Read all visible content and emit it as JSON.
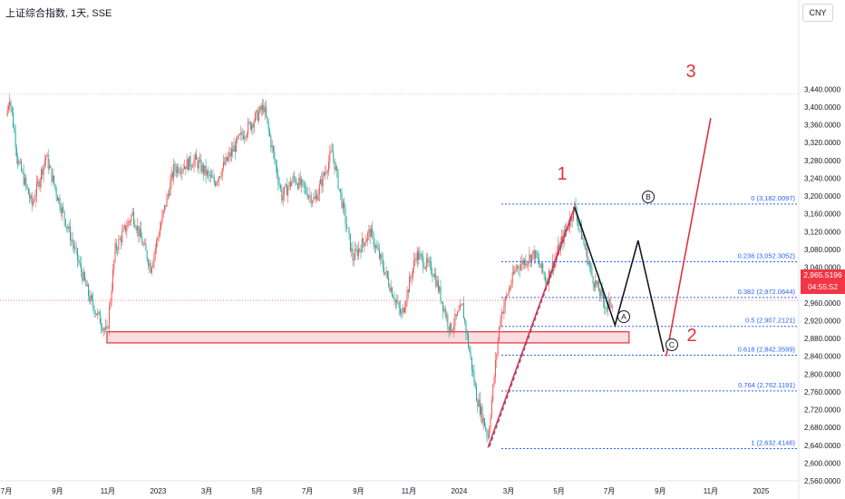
{
  "header": {
    "symbol": "上证综合指数",
    "interval": "1天",
    "exchange": "SSE",
    "currency_button": "CNY"
  },
  "last_price": {
    "value": "2,965.5196",
    "countdown": "04:55:52"
  },
  "colors": {
    "up": "#ef5350",
    "down": "#26a69a",
    "fib": "#2962ff",
    "wave": "#e0323c",
    "zone": "#f7c7cc"
  },
  "chart_data": {
    "type": "candlestick",
    "y_range": [
      2560,
      3460
    ],
    "y_ticks": [
      "3,440.0000",
      "3,400.0000",
      "3,360.0000",
      "3,320.0000",
      "3,280.0000",
      "3,240.0000",
      "3,200.0000",
      "3,160.0000",
      "3,120.0000",
      "3,080.0000",
      "3,040.0000",
      "3,000.0000",
      "2,960.0000",
      "2,920.0000",
      "2,880.0000",
      "2,840.0000",
      "2,800.0000",
      "2,760.0000",
      "2,720.0000",
      "2,680.0000",
      "2,640.0000",
      "2,600.0000",
      "2,560.0000"
    ],
    "x_ticks": [
      "7月",
      "9月",
      "11月",
      "2023",
      "3月",
      "5月",
      "7月",
      "9月",
      "11月",
      "2024",
      "3月",
      "5月",
      "7月",
      "9月",
      "11月",
      "2025"
    ],
    "price_path": [
      [
        "2022-07-01",
        3380
      ],
      [
        "2022-07-05",
        3425
      ],
      [
        "2022-07-15",
        3280
      ],
      [
        "2022-08-01",
        3180
      ],
      [
        "2022-08-18",
        3290
      ],
      [
        "2022-09-01",
        3200
      ],
      [
        "2022-09-15",
        3120
      ],
      [
        "2022-10-10",
        2970
      ],
      [
        "2022-10-31",
        2890
      ],
      [
        "2022-11-10",
        3080
      ],
      [
        "2022-12-01",
        3160
      ],
      [
        "2022-12-23",
        3040
      ],
      [
        "2023-01-20",
        3260
      ],
      [
        "2023-02-15",
        3280
      ],
      [
        "2023-03-10",
        3230
      ],
      [
        "2023-04-10",
        3330
      ],
      [
        "2023-05-09",
        3400
      ],
      [
        "2023-05-31",
        3200
      ],
      [
        "2023-06-15",
        3240
      ],
      [
        "2023-07-10",
        3190
      ],
      [
        "2023-07-31",
        3300
      ],
      [
        "2023-08-25",
        3060
      ],
      [
        "2023-09-15",
        3120
      ],
      [
        "2023-10-23",
        2930
      ],
      [
        "2023-11-10",
        3070
      ],
      [
        "2023-12-01",
        3030
      ],
      [
        "2023-12-21",
        2900
      ],
      [
        "2024-01-05",
        2950
      ],
      [
        "2024-01-22",
        2750
      ],
      [
        "2024-02-05",
        2660
      ],
      [
        "2024-02-20",
        2930
      ],
      [
        "2024-03-10",
        3040
      ],
      [
        "2024-04-01",
        3070
      ],
      [
        "2024-04-16",
        3010
      ],
      [
        "2024-05-20",
        3175
      ],
      [
        "2024-06-10",
        3020
      ],
      [
        "2024-06-28",
        2950
      ],
      [
        "2024-07-05",
        2965
      ]
    ],
    "support_zone": {
      "start": "2022-10-31",
      "end": "2024-07-25",
      "low": 2870,
      "high": 2895
    },
    "fibonacci": [
      {
        "ratio": "0",
        "price": 3182.0097,
        "label": "0 (3,182.0097)"
      },
      {
        "ratio": "0.236",
        "price": 3052.3052,
        "label": "0.236 (3,052.3052)"
      },
      {
        "ratio": "0.382",
        "price": 2972.0644,
        "label": "0.382 (2,972.0644)"
      },
      {
        "ratio": "0.5",
        "price": 2907.2121,
        "label": "0.5 (2,907.2121)"
      },
      {
        "ratio": "0.618",
        "price": 2842.3599,
        "label": "0.618 (2,842.3599)"
      },
      {
        "ratio": "0.764",
        "price": 2762.1191,
        "label": "0.764 (2,762.1191)"
      },
      {
        "ratio": "1",
        "price": 2632.4146,
        "label": "1 (2,632.4146)"
      }
    ],
    "wave_labels": [
      "1",
      "2",
      "3"
    ],
    "abc_labels": [
      "A",
      "B",
      "C"
    ],
    "projection_points": [
      [
        "2024-05-20",
        3175
      ],
      [
        "2024-07-08",
        2910
      ],
      [
        "2024-08-05",
        3100
      ],
      [
        "2024-09-05",
        2850
      ]
    ],
    "wave_lines": [
      [
        [
          "2024-02-05",
          2635
        ],
        [
          "2024-05-20",
          3175
        ]
      ],
      [
        [
          "2024-09-08",
          2840
        ],
        [
          "2024-11-01",
          3375
        ]
      ]
    ]
  }
}
